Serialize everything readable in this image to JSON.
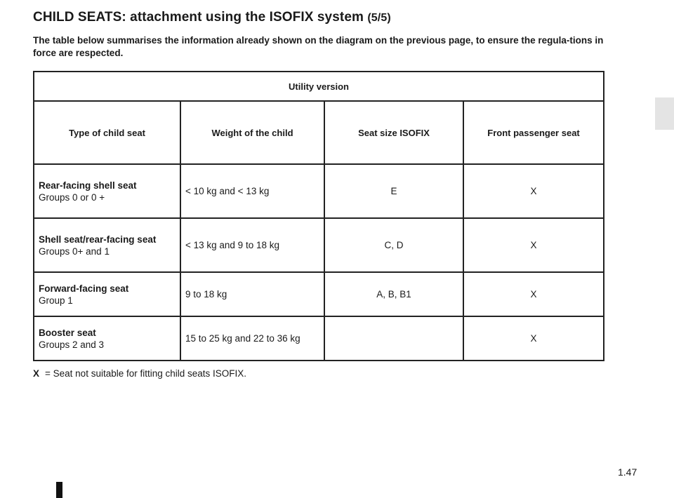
{
  "page": {
    "title": "CHILD SEATS: attachment using the ISOFIX system",
    "title_part": "(5/5)",
    "intro": "The table below summarises the information already shown on the diagram on the previous page, to ensure the regula-tions in force are respected.",
    "page_number": "1.47"
  },
  "table": {
    "version_label": "Utility version",
    "headers": [
      "Type of child seat",
      "Weight of the child",
      "Seat size ISOFIX",
      "Front passenger seat"
    ],
    "rows": [
      {
        "type_name": "Rear-facing shell seat",
        "type_groups": "Groups 0 or 0 +",
        "weight": "< 10 kg and < 13 kg",
        "size": "E",
        "front": "X"
      },
      {
        "type_name": "Shell seat/rear-facing seat",
        "type_groups": "Groups 0+ and 1",
        "weight": "< 13 kg and 9 to 18 kg",
        "size": "C, D",
        "front": "X"
      },
      {
        "type_name": "Forward-facing seat",
        "type_groups": "Group 1",
        "weight": "9 to 18 kg",
        "size": "A, B, B1",
        "front": "X"
      },
      {
        "type_name": "Booster seat",
        "type_groups": "Groups 2 and 3",
        "weight": "15 to 25 kg and 22 to 36 kg",
        "size": "",
        "front": "X"
      }
    ]
  },
  "footnote": {
    "symbol": "X",
    "text": "= Seat not suitable for fitting child seats ISOFIX."
  }
}
